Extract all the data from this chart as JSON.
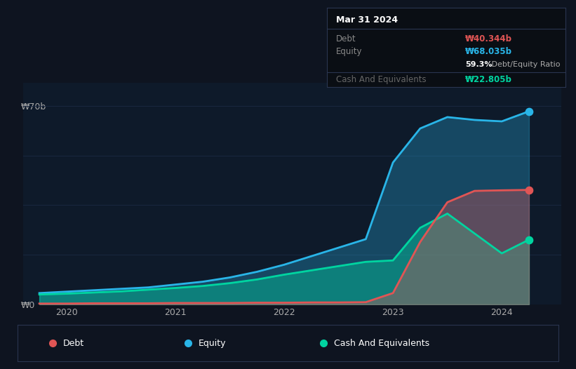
{
  "bg_color": "#0e1420",
  "plot_bg_color": "#0e1a2a",
  "grid_color": "#1a2840",
  "debt_color": "#e05555",
  "equity_color": "#29b5e8",
  "cash_color": "#00d4a0",
  "ylabel_top": "₩70b",
  "ylabel_bottom": "₩0",
  "x_ticks": [
    2020,
    2021,
    2022,
    2023,
    2024
  ],
  "xlim_left": 2019.6,
  "xlim_right": 2024.55,
  "ylim": [
    0,
    78
  ],
  "title_tooltip": "Mar 31 2024",
  "tooltip_debt_label": "Debt",
  "tooltip_debt_val": "₩40.344b",
  "tooltip_equity_label": "Equity",
  "tooltip_equity_val": "₩68.035b",
  "tooltip_ratio": "59.3%",
  "tooltip_ratio_label": " Debt/Equity Ratio",
  "tooltip_cash_label": "Cash And Equivalents",
  "tooltip_cash_val": "₩22.805b",
  "legend_items": [
    "Debt",
    "Equity",
    "Cash And Equivalents"
  ],
  "x_dates": [
    2019.75,
    2020.0,
    2020.25,
    2020.5,
    2020.75,
    2021.0,
    2021.25,
    2021.5,
    2021.75,
    2022.0,
    2022.25,
    2022.5,
    2022.75,
    2023.0,
    2023.25,
    2023.5,
    2023.75,
    2024.0,
    2024.25
  ],
  "equity": [
    4.0,
    4.5,
    5.0,
    5.5,
    6.0,
    7.0,
    8.0,
    9.5,
    11.5,
    14.0,
    17.0,
    20.0,
    23.0,
    50.0,
    62.0,
    66.0,
    65.0,
    64.5,
    68.035
  ],
  "debt": [
    0.3,
    0.3,
    0.4,
    0.4,
    0.4,
    0.5,
    0.5,
    0.5,
    0.6,
    0.6,
    0.7,
    0.7,
    0.8,
    4.0,
    22.0,
    36.0,
    40.0,
    40.2,
    40.344
  ],
  "cash": [
    3.5,
    3.8,
    4.2,
    4.6,
    5.2,
    5.8,
    6.5,
    7.5,
    8.8,
    10.5,
    12.0,
    13.5,
    15.0,
    15.5,
    27.0,
    32.0,
    25.0,
    18.0,
    22.805
  ]
}
